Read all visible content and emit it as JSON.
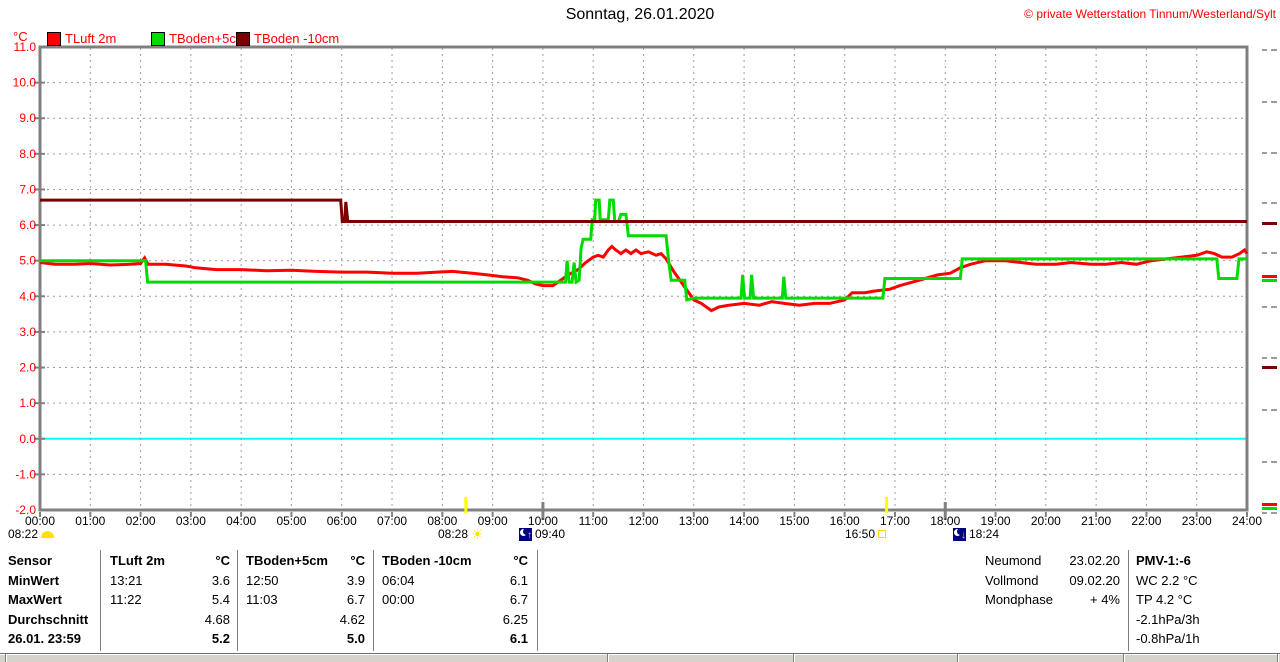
{
  "header": {
    "title": "Sonntag, 26.01.2020",
    "copyright": "© private Wetterstation Tinnum/Westerland/Sylt"
  },
  "legend": {
    "unit": "°C",
    "items": [
      {
        "label": "TLuft 2m",
        "color": "#ff0000"
      },
      {
        "label": "TBoden+5cm",
        "color": "#00dc00"
      },
      {
        "label": "TBoden -10cm",
        "color": "#7b0000"
      }
    ]
  },
  "day_markers": {
    "sunrise_early": "08:22",
    "sunrise": "08:28",
    "moonrise": "09:40",
    "sunset": "16:50",
    "moonset": "18:24"
  },
  "chart_data": {
    "type": "line",
    "title": "Sonntag, 26.01.2020",
    "ylabel": "°C",
    "ylim": [
      -2.0,
      11.0
    ],
    "xlim_hours": [
      0,
      24
    ],
    "grid": "dashed",
    "grid_color": "#9c9c9c",
    "axis_color": "#808080",
    "zero_line_color": "#00ffff",
    "tick_label_color_y": "#ff0000",
    "tick_label_color_x": "#000000",
    "sun_line_color": "#ffff00",
    "sun_line_hours": [
      8.4667,
      16.8333
    ],
    "y_tick_labels": [
      "11.0",
      "10.0",
      "9.0",
      "8.0",
      "7.0",
      "6.0",
      "5.0",
      "4.0",
      "3.0",
      "2.0",
      "1.0",
      "0.0",
      "-1.0",
      "-2.0"
    ],
    "x_tick_labels": [
      "00:00",
      "01:00",
      "02:00",
      "03:00",
      "04:00",
      "05:00",
      "06:00",
      "07:00",
      "08:00",
      "09:00",
      "10:00",
      "11:00",
      "12:00",
      "13:00",
      "14:00",
      "15:00",
      "16:00",
      "17:00",
      "18:00",
      "19:00",
      "20:00",
      "21:00",
      "22:00",
      "23:00",
      "24:00"
    ],
    "series": [
      {
        "name": "TLuft 2m",
        "color": "#ff0000",
        "points": [
          [
            0,
            4.95
          ],
          [
            0.3,
            4.9
          ],
          [
            0.7,
            4.9
          ],
          [
            1.0,
            4.92
          ],
          [
            1.4,
            4.88
          ],
          [
            1.8,
            4.9
          ],
          [
            2.0,
            4.92
          ],
          [
            2.08,
            5.08
          ],
          [
            2.15,
            4.9
          ],
          [
            2.5,
            4.9
          ],
          [
            2.9,
            4.85
          ],
          [
            3.1,
            4.8
          ],
          [
            3.5,
            4.75
          ],
          [
            4.0,
            4.75
          ],
          [
            4.5,
            4.72
          ],
          [
            5.0,
            4.73
          ],
          [
            5.5,
            4.7
          ],
          [
            6.0,
            4.68
          ],
          [
            6.5,
            4.68
          ],
          [
            7.0,
            4.65
          ],
          [
            7.5,
            4.65
          ],
          [
            7.9,
            4.68
          ],
          [
            8.2,
            4.7
          ],
          [
            8.6,
            4.65
          ],
          [
            8.9,
            4.6
          ],
          [
            9.2,
            4.55
          ],
          [
            9.5,
            4.52
          ],
          [
            9.7,
            4.45
          ],
          [
            9.85,
            4.35
          ],
          [
            10.0,
            4.3
          ],
          [
            10.2,
            4.3
          ],
          [
            10.35,
            4.45
          ],
          [
            10.5,
            4.6
          ],
          [
            10.7,
            4.75
          ],
          [
            10.85,
            4.95
          ],
          [
            11.0,
            5.1
          ],
          [
            11.1,
            5.15
          ],
          [
            11.2,
            5.1
          ],
          [
            11.3,
            5.3
          ],
          [
            11.37,
            5.4
          ],
          [
            11.45,
            5.3
          ],
          [
            11.55,
            5.2
          ],
          [
            11.65,
            5.3
          ],
          [
            11.75,
            5.2
          ],
          [
            11.85,
            5.3
          ],
          [
            11.95,
            5.2
          ],
          [
            12.1,
            5.25
          ],
          [
            12.25,
            5.15
          ],
          [
            12.35,
            5.2
          ],
          [
            12.45,
            5.05
          ],
          [
            12.6,
            4.7
          ],
          [
            12.75,
            4.4
          ],
          [
            12.9,
            4.1
          ],
          [
            13.0,
            3.9
          ],
          [
            13.15,
            3.8
          ],
          [
            13.35,
            3.6
          ],
          [
            13.5,
            3.7
          ],
          [
            13.7,
            3.75
          ],
          [
            14.0,
            3.8
          ],
          [
            14.3,
            3.75
          ],
          [
            14.55,
            3.85
          ],
          [
            14.8,
            3.8
          ],
          [
            15.1,
            3.75
          ],
          [
            15.4,
            3.8
          ],
          [
            15.7,
            3.8
          ],
          [
            16.0,
            3.9
          ],
          [
            16.15,
            4.1
          ],
          [
            16.4,
            4.1
          ],
          [
            16.6,
            4.15
          ],
          [
            16.9,
            4.2
          ],
          [
            17.1,
            4.3
          ],
          [
            17.35,
            4.4
          ],
          [
            17.6,
            4.5
          ],
          [
            17.85,
            4.6
          ],
          [
            18.1,
            4.65
          ],
          [
            18.3,
            4.8
          ],
          [
            18.5,
            4.9
          ],
          [
            18.8,
            5.0
          ],
          [
            19.2,
            5.0
          ],
          [
            19.5,
            4.95
          ],
          [
            19.8,
            4.9
          ],
          [
            20.2,
            4.9
          ],
          [
            20.5,
            4.95
          ],
          [
            20.9,
            4.9
          ],
          [
            21.2,
            4.9
          ],
          [
            21.5,
            4.95
          ],
          [
            21.8,
            4.9
          ],
          [
            22.1,
            5.0
          ],
          [
            22.4,
            5.05
          ],
          [
            22.7,
            5.1
          ],
          [
            23.0,
            5.15
          ],
          [
            23.2,
            5.25
          ],
          [
            23.35,
            5.2
          ],
          [
            23.5,
            5.1
          ],
          [
            23.7,
            5.1
          ],
          [
            23.85,
            5.2
          ],
          [
            23.95,
            5.3
          ],
          [
            24,
            5.2
          ]
        ]
      },
      {
        "name": "TBoden+5cm",
        "color": "#00dc00",
        "points": [
          [
            0,
            5.0
          ],
          [
            2.1,
            5.0
          ],
          [
            2.14,
            4.4
          ],
          [
            10.45,
            4.4
          ],
          [
            10.48,
            5.0
          ],
          [
            10.52,
            4.4
          ],
          [
            10.58,
            4.4
          ],
          [
            10.62,
            4.95
          ],
          [
            10.66,
            4.4
          ],
          [
            10.72,
            4.45
          ],
          [
            10.76,
            5.35
          ],
          [
            10.8,
            5.6
          ],
          [
            10.95,
            5.6
          ],
          [
            10.98,
            6.15
          ],
          [
            11.03,
            6.15
          ],
          [
            11.05,
            6.7
          ],
          [
            11.12,
            6.7
          ],
          [
            11.14,
            6.15
          ],
          [
            11.3,
            6.15
          ],
          [
            11.33,
            6.7
          ],
          [
            11.4,
            6.7
          ],
          [
            11.43,
            6.1
          ],
          [
            11.5,
            6.1
          ],
          [
            11.55,
            6.3
          ],
          [
            11.65,
            6.3
          ],
          [
            11.7,
            5.7
          ],
          [
            12.45,
            5.7
          ],
          [
            12.5,
            5.0
          ],
          [
            12.55,
            4.45
          ],
          [
            12.82,
            4.45
          ],
          [
            12.86,
            3.9
          ],
          [
            13.0,
            3.95
          ],
          [
            13.94,
            3.95
          ],
          [
            13.97,
            4.6
          ],
          [
            14.01,
            3.95
          ],
          [
            14.12,
            3.95
          ],
          [
            14.15,
            4.6
          ],
          [
            14.19,
            3.95
          ],
          [
            14.76,
            3.95
          ],
          [
            14.79,
            4.55
          ],
          [
            14.83,
            3.95
          ],
          [
            16.0,
            3.95
          ],
          [
            16.76,
            3.95
          ],
          [
            16.8,
            4.5
          ],
          [
            18.3,
            4.5
          ],
          [
            18.34,
            5.05
          ],
          [
            23.4,
            5.05
          ],
          [
            23.44,
            4.5
          ],
          [
            23.8,
            4.5
          ],
          [
            23.84,
            5.05
          ],
          [
            24,
            5.05
          ]
        ]
      },
      {
        "name": "TBoden -10cm",
        "color": "#7b0000",
        "points": [
          [
            0,
            6.7
          ],
          [
            5.98,
            6.7
          ],
          [
            6.01,
            6.1
          ],
          [
            6.06,
            6.1
          ],
          [
            6.08,
            6.65
          ],
          [
            6.12,
            6.1
          ],
          [
            24,
            6.1
          ]
        ]
      }
    ],
    "right_edge_ticks_y": [
      50,
      102,
      153,
      203,
      253,
      307,
      358,
      410,
      462,
      513
    ],
    "right_edge_marks": [
      {
        "y": 222,
        "color": "#7b0000"
      },
      {
        "y": 275,
        "color": "#ff0000"
      },
      {
        "y": 279,
        "color": "#00dc00"
      },
      {
        "y": 366,
        "color": "#7b0000"
      },
      {
        "y": 503,
        "color": "#ff0000"
      },
      {
        "y": 507,
        "color": "#00dc00"
      }
    ]
  },
  "stats_table": {
    "unit": "°C",
    "row_labels": [
      "Sensor",
      "MinWert",
      "MaxWert",
      "Durchschnitt",
      "26.01. 23:59"
    ],
    "columns": [
      {
        "name": "TLuft 2m",
        "min_time": "13:21",
        "min": "3.6",
        "max_time": "11:22",
        "max": "5.4",
        "avg": "4.68",
        "last": "5.2"
      },
      {
        "name": "TBoden+5cm",
        "min_time": "12:50",
        "min": "3.9",
        "max_time": "11:03",
        "max": "6.7",
        "avg": "4.62",
        "last": "5.0"
      },
      {
        "name": "TBoden -10cm",
        "min_time": "06:04",
        "min": "6.1",
        "max_time": "00:00",
        "max": "6.7",
        "avg": "6.25",
        "last": "6.1"
      }
    ]
  },
  "astro": {
    "rows": [
      {
        "label": "Neumond",
        "value": "23.02.20"
      },
      {
        "label": "Vollmond",
        "value": "09.02.20"
      },
      {
        "label": "Mondphase",
        "value": "+ 4%"
      }
    ]
  },
  "pmv": {
    "title": "PMV-1:-6",
    "lines": [
      "WC 2.2 °C",
      "TP 4.2 °C",
      "-2.1hPa/3h",
      "-0.8hPa/1h"
    ]
  }
}
